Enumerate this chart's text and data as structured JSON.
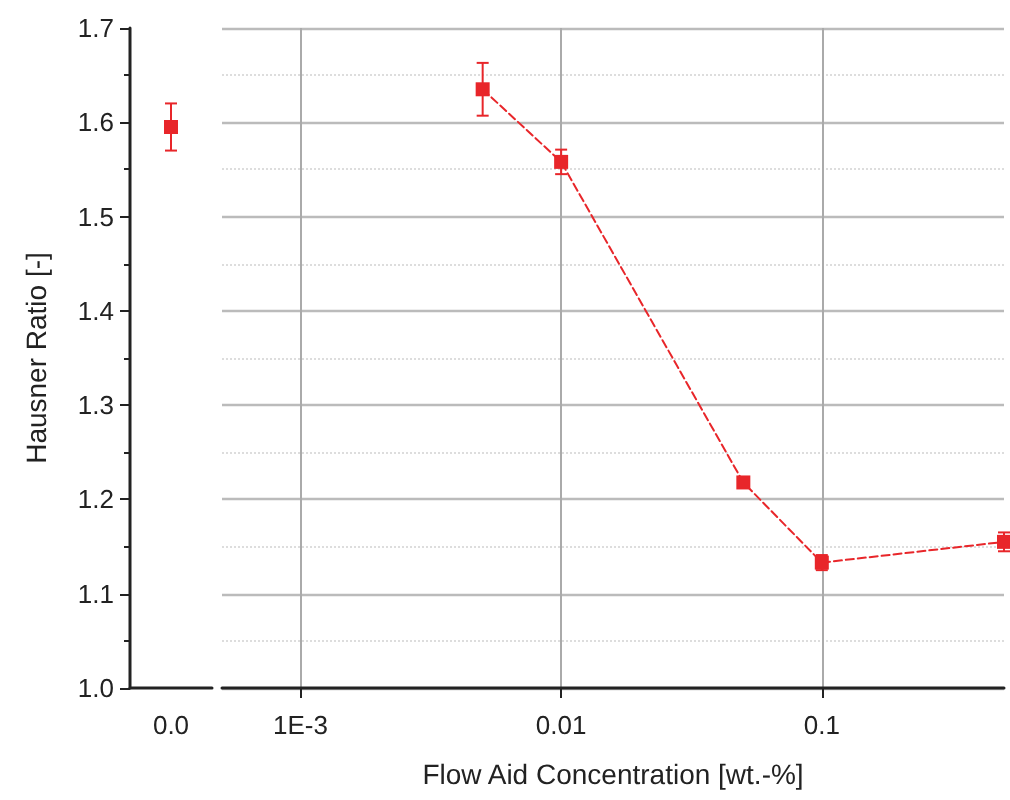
{
  "chart_data": [
    {
      "type": "line",
      "ylabel": "Hausner Ratio [-]",
      "categories": [
        "0.0"
      ],
      "ylim": [
        1.0,
        1.7
      ],
      "yticks": [
        {
          "value": 1.0,
          "label": "1.0"
        },
        1.1,
        1.2,
        1.3,
        1.4,
        1.5,
        1.6,
        1.7
      ],
      "marker": "square",
      "line_style": "dashed",
      "series": [
        {
          "color": "#e8262a",
          "values": [
            1.595
          ],
          "errors": [
            0.025
          ]
        }
      ]
    },
    {
      "type": "line",
      "xlabel": "Flow Aid Concentration [wt.-%]",
      "x": [
        0.005,
        0.01,
        0.05,
        0.1,
        0.5
      ],
      "log": "x",
      "xlim": [
        0.0005,
        0.5
      ],
      "xticks": [
        {
          "value": 0.001,
          "label": "1E-3"
        },
        0.01,
        0.1
      ],
      "ylim": [
        1.0,
        1.7
      ],
      "yticks": [
        1.0,
        1.1,
        1.2,
        1.3,
        1.4,
        1.5,
        1.6,
        1.7
      ],
      "tick_labels": "x",
      "grid": true,
      "marker": "square",
      "line_style": "dashed",
      "series": [
        {
          "color": "#e8262a",
          "values": [
            1.635,
            1.558,
            1.218,
            1.133,
            1.155
          ],
          "errors": [
            0.028,
            0.013,
            0.005,
            0.008,
            0.01
          ]
        }
      ]
    }
  ]
}
